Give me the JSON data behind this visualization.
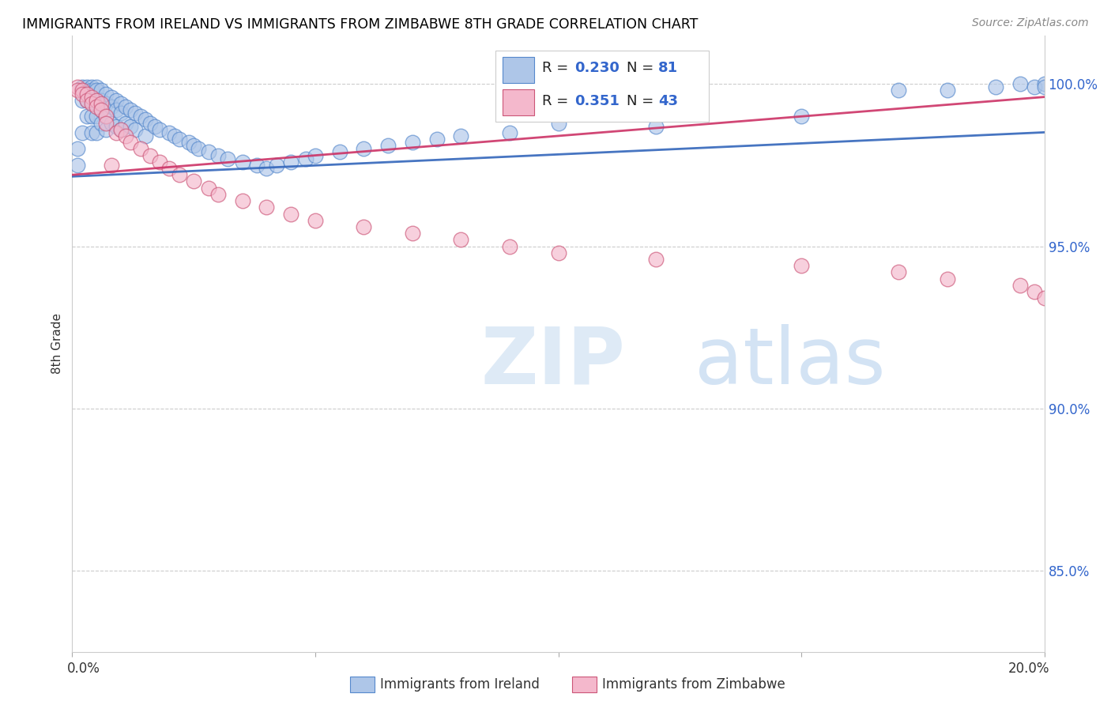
{
  "title": "IMMIGRANTS FROM IRELAND VS IMMIGRANTS FROM ZIMBABWE 8TH GRADE CORRELATION CHART",
  "source": "Source: ZipAtlas.com",
  "ylabel": "8th Grade",
  "ireland_color": "#aec6e8",
  "ireland_edge": "#5588cc",
  "zimbabwe_color": "#f4b8cc",
  "zimbabwe_edge": "#cc5577",
  "ireland_line_color": "#3366bb",
  "zimbabwe_line_color": "#cc3366",
  "ireland_R": 0.23,
  "ireland_N": 81,
  "zimbabwe_R": 0.351,
  "zimbabwe_N": 43,
  "xlim": [
    0.0,
    0.2
  ],
  "ylim": [
    0.825,
    1.01
  ],
  "yticks": [
    0.85,
    0.9,
    0.95,
    1.0
  ],
  "ytick_labels": [
    "85.0%",
    "90.0%",
    "95.0%",
    "100.0%"
  ],
  "ireland_x": [
    0.001,
    0.001,
    0.002,
    0.002,
    0.002,
    0.003,
    0.003,
    0.003,
    0.003,
    0.004,
    0.004,
    0.004,
    0.004,
    0.004,
    0.005,
    0.005,
    0.005,
    0.005,
    0.005,
    0.006,
    0.006,
    0.006,
    0.006,
    0.007,
    0.007,
    0.007,
    0.007,
    0.008,
    0.008,
    0.008,
    0.009,
    0.009,
    0.009,
    0.01,
    0.01,
    0.01,
    0.011,
    0.011,
    0.012,
    0.012,
    0.013,
    0.013,
    0.014,
    0.015,
    0.015,
    0.016,
    0.017,
    0.018,
    0.02,
    0.021,
    0.022,
    0.024,
    0.025,
    0.026,
    0.028,
    0.03,
    0.032,
    0.035,
    0.038,
    0.04,
    0.042,
    0.045,
    0.048,
    0.05,
    0.055,
    0.06,
    0.065,
    0.07,
    0.075,
    0.08,
    0.09,
    0.1,
    0.12,
    0.15,
    0.17,
    0.18,
    0.19,
    0.195,
    0.198,
    0.2,
    0.2
  ],
  "ireland_y": [
    0.98,
    0.975,
    0.999,
    0.995,
    0.985,
    0.999,
    0.998,
    0.995,
    0.99,
    0.999,
    0.998,
    0.995,
    0.99,
    0.985,
    0.999,
    0.998,
    0.995,
    0.99,
    0.985,
    0.998,
    0.995,
    0.992,
    0.988,
    0.997,
    0.994,
    0.99,
    0.986,
    0.996,
    0.993,
    0.988,
    0.995,
    0.992,
    0.987,
    0.994,
    0.991,
    0.986,
    0.993,
    0.988,
    0.992,
    0.987,
    0.991,
    0.986,
    0.99,
    0.989,
    0.984,
    0.988,
    0.987,
    0.986,
    0.985,
    0.984,
    0.983,
    0.982,
    0.981,
    0.98,
    0.979,
    0.978,
    0.977,
    0.976,
    0.975,
    0.974,
    0.975,
    0.976,
    0.977,
    0.978,
    0.979,
    0.98,
    0.981,
    0.982,
    0.983,
    0.984,
    0.985,
    0.988,
    0.987,
    0.99,
    0.998,
    0.998,
    0.999,
    1.0,
    0.999,
    1.0,
    0.999
  ],
  "zimbabwe_x": [
    0.001,
    0.001,
    0.002,
    0.002,
    0.003,
    0.003,
    0.004,
    0.004,
    0.005,
    0.005,
    0.006,
    0.006,
    0.007,
    0.007,
    0.008,
    0.009,
    0.01,
    0.011,
    0.012,
    0.014,
    0.016,
    0.018,
    0.02,
    0.022,
    0.025,
    0.028,
    0.03,
    0.035,
    0.04,
    0.045,
    0.05,
    0.06,
    0.07,
    0.08,
    0.09,
    0.1,
    0.12,
    0.15,
    0.17,
    0.18,
    0.195,
    0.198,
    0.2
  ],
  "zimbabwe_y": [
    0.999,
    0.998,
    0.998,
    0.997,
    0.997,
    0.995,
    0.996,
    0.994,
    0.995,
    0.993,
    0.994,
    0.992,
    0.99,
    0.988,
    0.975,
    0.985,
    0.986,
    0.984,
    0.982,
    0.98,
    0.978,
    0.976,
    0.974,
    0.972,
    0.97,
    0.968,
    0.966,
    0.964,
    0.962,
    0.96,
    0.958,
    0.956,
    0.954,
    0.952,
    0.95,
    0.948,
    0.946,
    0.944,
    0.942,
    0.94,
    0.938,
    0.936,
    0.934
  ],
  "trendline_ireland_m": 0.068,
  "trendline_ireland_b": 0.9715,
  "trendline_zimbabwe_m": 0.12,
  "trendline_zimbabwe_b": 0.972
}
